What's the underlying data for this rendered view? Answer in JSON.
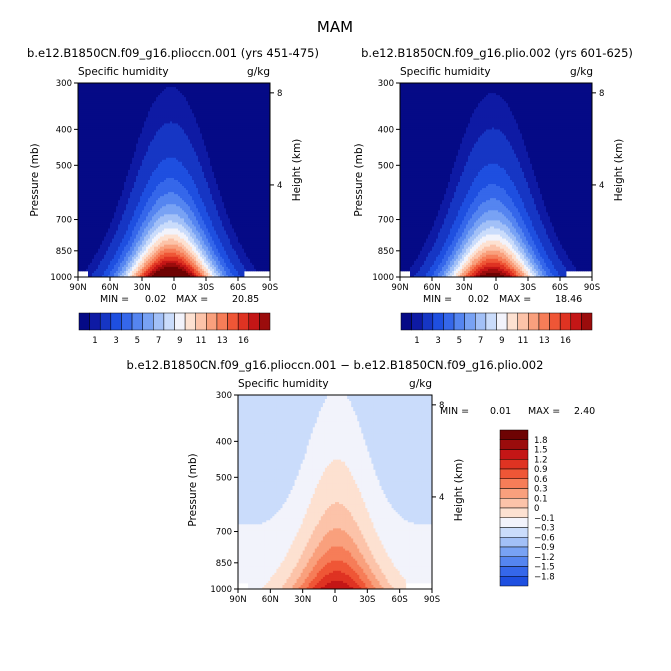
{
  "figure": {
    "title": "MAM"
  },
  "colors": {
    "cmap_sh": [
      "#050a86",
      "#0e1aa4",
      "#1636c4",
      "#1e4fe0",
      "#3567ea",
      "#5585f0",
      "#78a2f4",
      "#a2c0f7",
      "#cadcfb",
      "#f2f3fb",
      "#fde1d1",
      "#fcc3a9",
      "#f9a07d",
      "#f67d58",
      "#ef5636",
      "#df3322",
      "#c41616",
      "#9b0c0c",
      "#6e0303"
    ],
    "cmap_diff": [
      "#050a86",
      "#0e1aa4",
      "#1636c4",
      "#1e4fe0",
      "#3567ea",
      "#5585f0",
      "#78a2f4",
      "#a2c0f7",
      "#cadcfb",
      "#f2f3fb",
      "#fde1d1",
      "#fcc3a9",
      "#f9a07d",
      "#f67d58",
      "#ef5636",
      "#df3322",
      "#c41616",
      "#9b0c0c",
      "#6e0303"
    ]
  },
  "chart_data": [
    {
      "type": "heatmap",
      "title": "b.e12.B1850CN.f09_g16.plioccn.001 (yrs 451-475)",
      "left_label": "Specific humidity",
      "right_label": "g/kg",
      "xlabel": "",
      "ylabel": "Pressure (mb)",
      "y2label": "Height (km)",
      "x_ticks": [
        "90N",
        "60N",
        "30N",
        "0",
        "30S",
        "60S",
        "90S"
      ],
      "x_range": [
        90,
        -90
      ],
      "y_ticks": [
        300,
        400,
        500,
        700,
        850,
        1000
      ],
      "y_range": [
        300,
        1000
      ],
      "y_scale": "log",
      "y2_ticks": [
        8,
        4
      ],
      "min_label": "MIN =",
      "min_value": "0.02",
      "max_label": "MAX =",
      "max_value": "20.85",
      "colorbar_labels": [
        "1",
        "3",
        "5",
        "7",
        "9",
        "11",
        "13",
        "16"
      ],
      "peak": 20.85,
      "grid": false,
      "legend": "bottom colorbar"
    },
    {
      "type": "heatmap",
      "title": "b.e12.B1850CN.f09_g16.plio.002 (yrs 601-625)",
      "left_label": "Specific humidity",
      "right_label": "g/kg",
      "xlabel": "",
      "ylabel": "Pressure (mb)",
      "y2label": "Height (km)",
      "x_ticks": [
        "90N",
        "60N",
        "30N",
        "0",
        "30S",
        "60S",
        "90S"
      ],
      "x_range": [
        90,
        -90
      ],
      "y_ticks": [
        300,
        400,
        500,
        700,
        850,
        1000
      ],
      "y_range": [
        300,
        1000
      ],
      "y_scale": "log",
      "y2_ticks": [
        8,
        4
      ],
      "min_label": "MIN =",
      "min_value": "0.02",
      "max_label": "MAX =",
      "max_value": "18.46",
      "colorbar_labels": [
        "1",
        "3",
        "5",
        "7",
        "9",
        "11",
        "13",
        "16"
      ],
      "peak": 18.46,
      "grid": false,
      "legend": "bottom colorbar"
    },
    {
      "type": "heatmap",
      "title": "b.e12.B1850CN.f09_g16.plioccn.001 − b.e12.B1850CN.f09_g16.plio.002",
      "left_label": "Specific humidity",
      "right_label": "g/kg",
      "xlabel": "",
      "ylabel": "Pressure (mb)",
      "y2label": "Height (km)",
      "x_ticks": [
        "90N",
        "60N",
        "30N",
        "0",
        "30S",
        "60S",
        "90S"
      ],
      "x_range": [
        90,
        -90
      ],
      "y_ticks": [
        300,
        400,
        500,
        700,
        850,
        1000
      ],
      "y_range": [
        300,
        1000
      ],
      "y_scale": "log",
      "y2_ticks": [
        8,
        4
      ],
      "min_label": "MIN =",
      "min_value": "0.01",
      "max_label": "MAX =",
      "max_value": "2.40",
      "colorbar_labels": [
        "1.8",
        "1.5",
        "1.2",
        "0.9",
        "0.6",
        "0.3",
        "0.1",
        "0",
        "−0.1",
        "−0.3",
        "−0.6",
        "−0.9",
        "−1.2",
        "−1.5",
        "−1.8"
      ],
      "peak": 2.4,
      "grid": false,
      "legend": "right colorbar"
    }
  ]
}
